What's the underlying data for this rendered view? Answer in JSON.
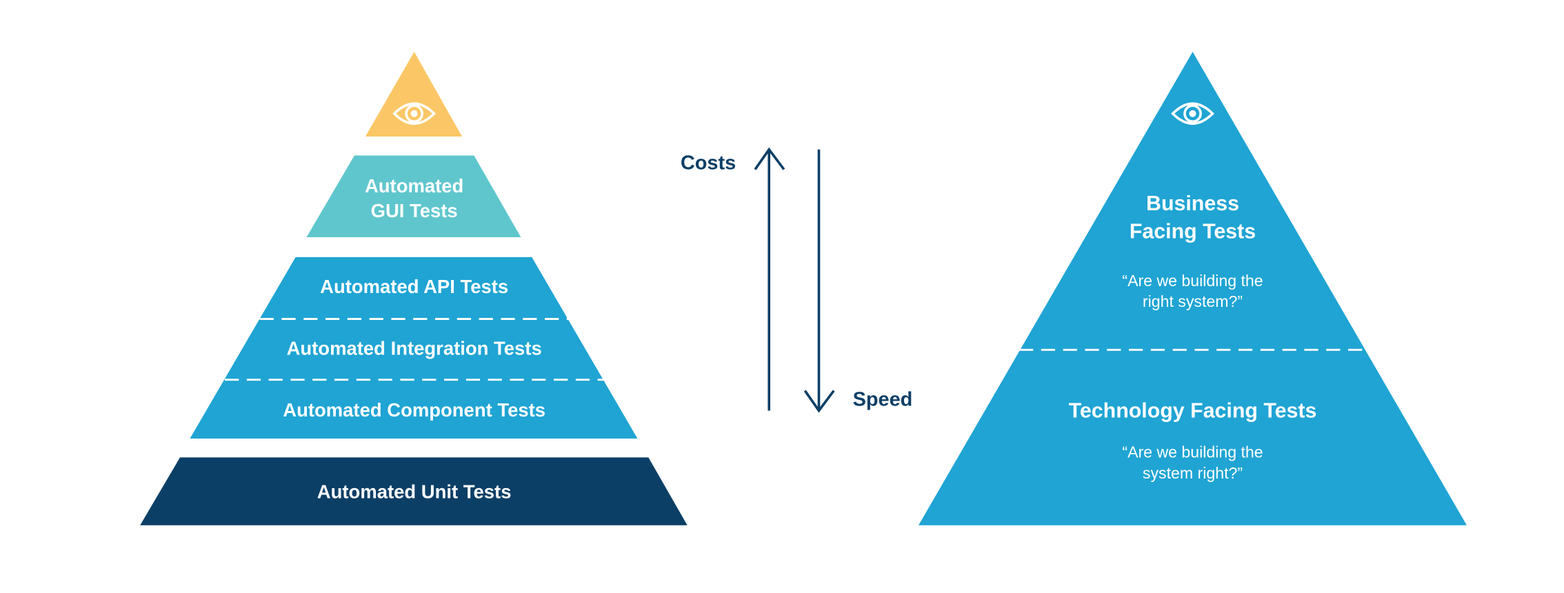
{
  "colors": {
    "top": "#fbc766",
    "gui": "#5fc6cd",
    "blue": "#1fa4d4",
    "unit": "#0c3f66",
    "arrow": "#0d3f66"
  },
  "left_pyramid": {
    "top_icon": "eye-icon",
    "gui": [
      "Automated",
      "GUI Tests"
    ],
    "api": "Automated API Tests",
    "integration": "Automated Integration Tests",
    "component": "Automated Component Tests",
    "unit": "Automated Unit Tests"
  },
  "arrows": {
    "costs": "Costs",
    "speed": "Speed"
  },
  "right_pyramid": {
    "top_icon": "eye-icon",
    "business": [
      "Business",
      "Facing Tests"
    ],
    "business_quote": [
      "“Are we building the",
      "right system?”"
    ],
    "technology": "Technology Facing Tests",
    "technology_quote": [
      "“Are we building the",
      "system right?”"
    ]
  }
}
